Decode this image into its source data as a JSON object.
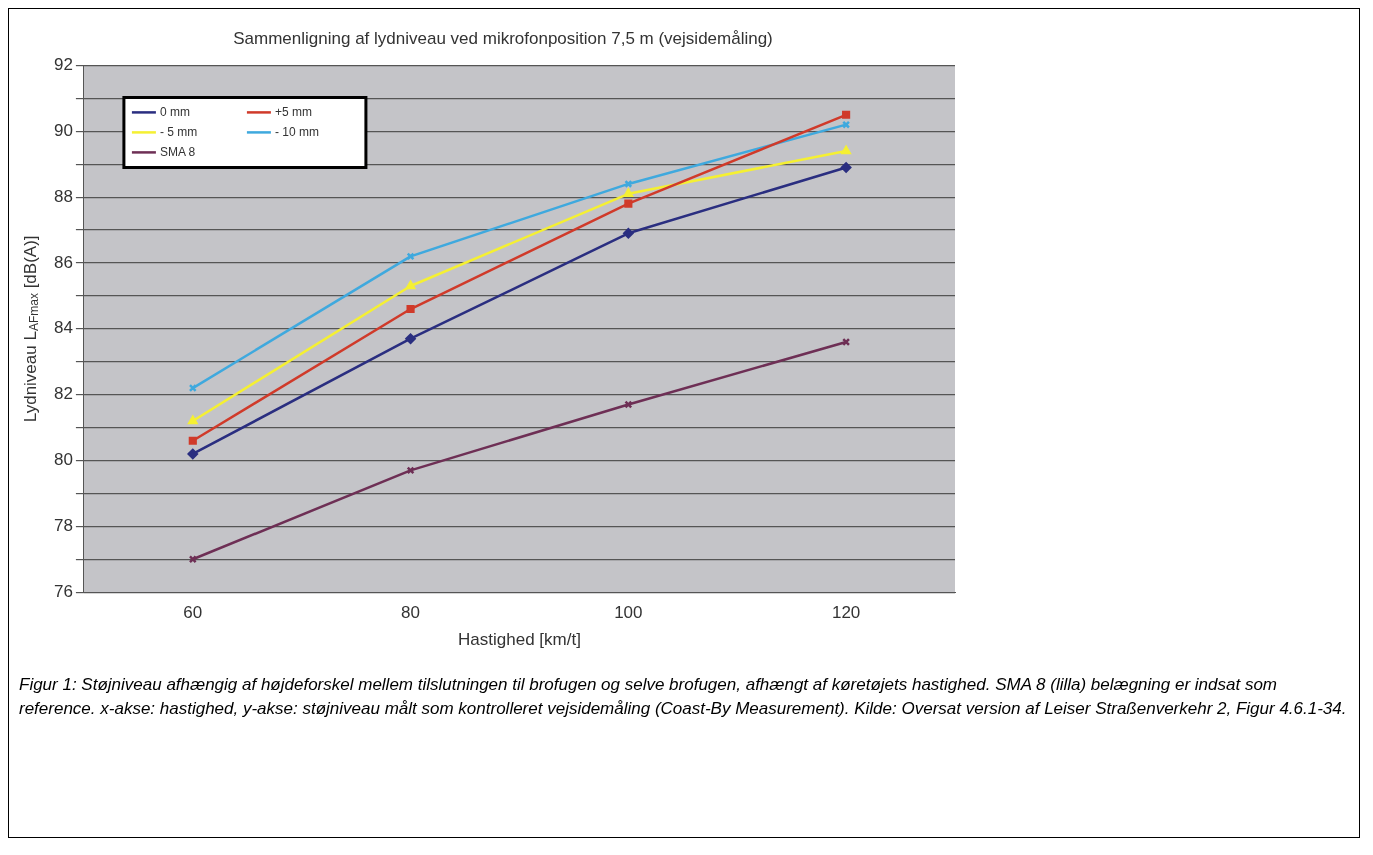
{
  "chart_data": {
    "type": "line",
    "title": "Sammenligning af lydniveau ved mikrofonposition 7,5 m (vejsidemåling)",
    "xlabel": "Hastighed [km/t]",
    "ylabel": "Lydniveau L$_{AFmax}$ [dB(A)]",
    "categories": [
      "60",
      "80",
      "100",
      "120"
    ],
    "series": [
      {
        "name": "0 mm",
        "color": "#2a2e80",
        "marker": "diamond",
        "values": [
          80.2,
          83.7,
          86.9,
          88.9
        ]
      },
      {
        "name": "+5 mm",
        "color": "#d03a2a",
        "marker": "square",
        "values": [
          80.6,
          84.6,
          87.8,
          90.5
        ]
      },
      {
        "name": "- 5 mm",
        "color": "#f5f032",
        "marker": "triangle",
        "values": [
          81.2,
          85.3,
          88.1,
          89.4
        ]
      },
      {
        "name": "- 10 mm",
        "color": "#3fa9de",
        "marker": "cross",
        "values": [
          82.2,
          86.2,
          88.4,
          90.2
        ]
      },
      {
        "name": "SMA 8",
        "color": "#6e2f55",
        "marker": "cross",
        "values": [
          77.0,
          79.7,
          81.7,
          83.6
        ]
      }
    ],
    "ylim": [
      76,
      92
    ],
    "yticks": [
      76,
      {
        "value": 77,
        "label": null
      },
      78,
      {
        "value": 79,
        "label": null
      },
      80,
      {
        "value": 81,
        "label": null
      },
      82,
      {
        "value": 83,
        "label": null
      },
      84,
      {
        "value": 85,
        "label": null
      },
      86,
      {
        "value": 87,
        "label": null
      },
      88,
      {
        "value": 89,
        "label": null
      },
      90,
      {
        "value": 91,
        "label": null
      },
      92
    ],
    "grid": "y",
    "legend": "top left",
    "line_style": "solid",
    "annotations": [
      "Figur 1: Støjniveau afhængig af højdeforskel mellem tilslutningen til brofugen og selve brofugen, afhængt af køretøjets hastighed. SMA 8 (lilla) belægning er indsat som reference. x-akse: hastighed, y-akse: støjniveau målt som kontrolleret vejsidemåling (Coast-By Measurement). Kilde: Oversat version af Leiser Straßenverkehr 2, Figur 4.6.1-34."
    ]
  }
}
